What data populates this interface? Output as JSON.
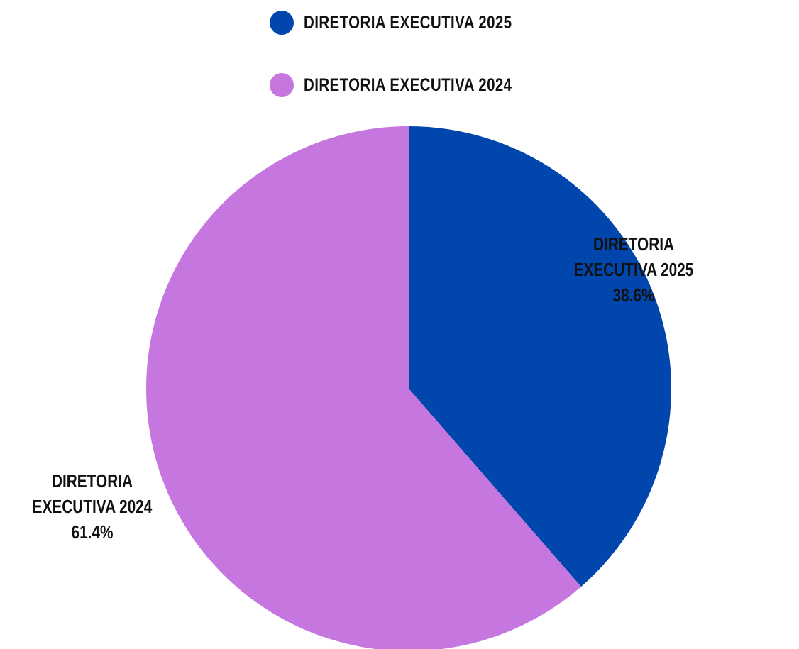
{
  "chart_data": {
    "type": "pie",
    "title": "",
    "legend_placement": "top",
    "slices": [
      {
        "label": "DIRETORIA EXECUTIVA 2025",
        "label_line1": "DIRETORIA",
        "label_line2": "EXECUTIVA 2025",
        "value": 38.6,
        "value_text": "38.6%",
        "color": "#0046AD"
      },
      {
        "label": "DIRETORIA EXECUTIVA 2024",
        "label_line1": "DIRETORIA",
        "label_line2": "EXECUTIVA 2024",
        "value": 61.4,
        "value_text": "61.4%",
        "color": "#C576DF"
      }
    ]
  }
}
